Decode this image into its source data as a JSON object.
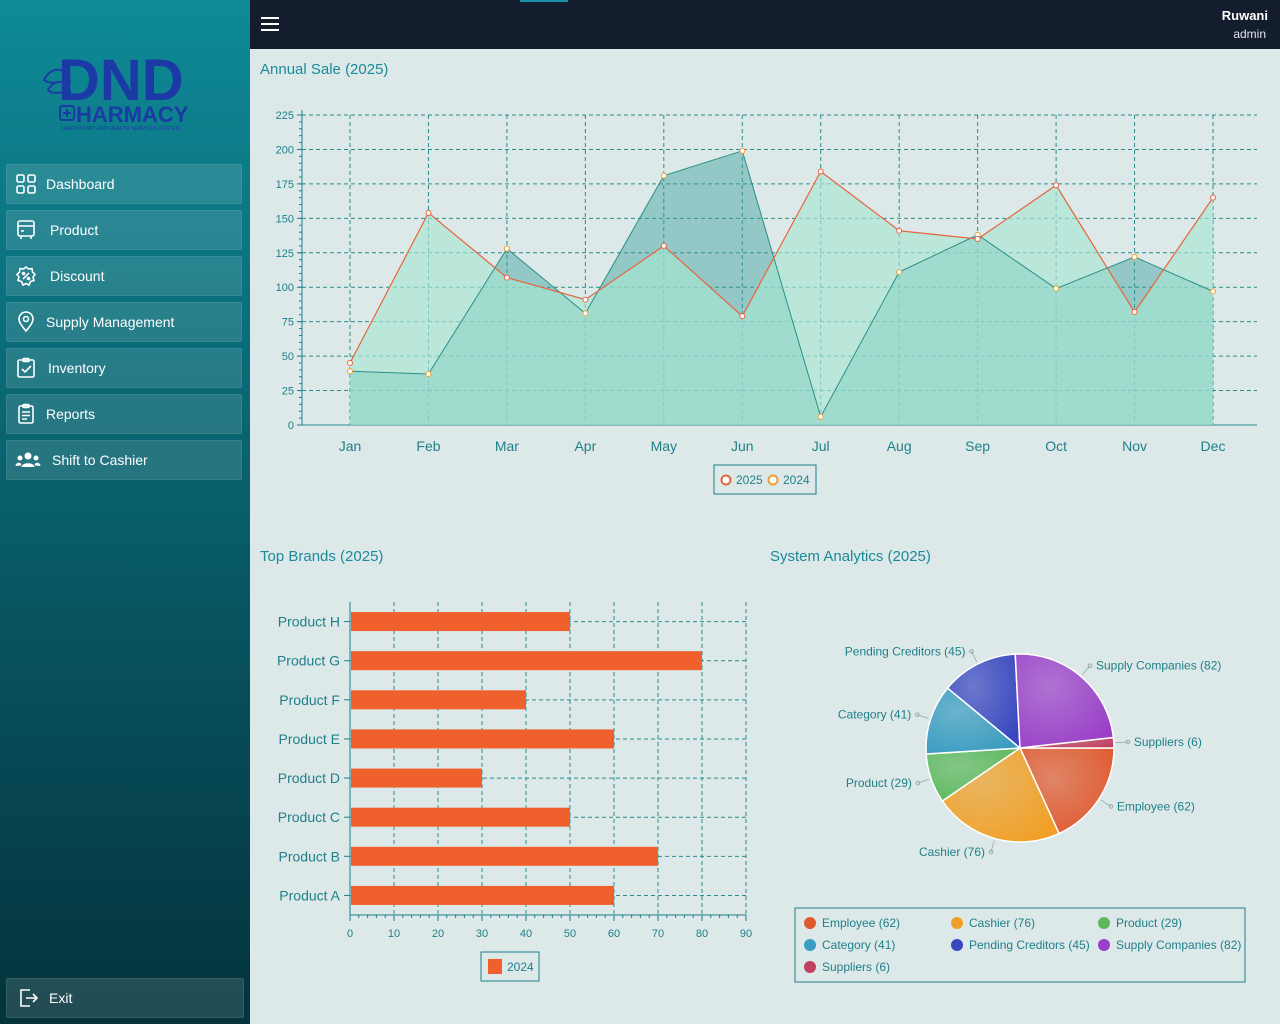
{
  "brand": {
    "logo_main": "DND",
    "logo_sub": "HARMACY",
    "logo_tag": "LABORATORY AND HEALTH SERVICES CENTER",
    "accent_color": "#1b3aa6"
  },
  "sidebar": {
    "items": [
      {
        "label": "Dashboard",
        "icon": "grid-icon"
      },
      {
        "label": "Product",
        "icon": "box-icon"
      },
      {
        "label": "Discount",
        "icon": "discount-badge-icon"
      },
      {
        "label": "Supply Management",
        "icon": "location-pin-icon"
      },
      {
        "label": "Inventory",
        "icon": "clipboard-check-icon"
      },
      {
        "label": "Reports",
        "icon": "report-icon"
      },
      {
        "label": "Shift to Cashier",
        "icon": "users-icon"
      }
    ],
    "exit_label": "Exit"
  },
  "topbar": {
    "user_name": "Ruwani",
    "user_role": "admin"
  },
  "sections": {
    "annual_title": "Annual Sale (2025)",
    "brands_title": "Top Brands (2025)",
    "analytics_title": "System Analytics (2025)"
  },
  "chart_data": [
    {
      "type": "area",
      "title": "Annual Sale (2025)",
      "categories": [
        "Jan",
        "Feb",
        "Mar",
        "Apr",
        "May",
        "Jun",
        "Jul",
        "Aug",
        "Sep",
        "Oct",
        "Nov",
        "Dec"
      ],
      "ylim": [
        0,
        225
      ],
      "yticks": [
        0,
        25,
        50,
        75,
        100,
        125,
        150,
        175,
        200,
        225
      ],
      "grid": true,
      "legend_position": "bottom-center",
      "series": [
        {
          "name": "2025",
          "color": "#e8643c",
          "fill": "#a8e6d2",
          "values": [
            45,
            154,
            107,
            91,
            130,
            79,
            184,
            141,
            135,
            174,
            82,
            165
          ]
        },
        {
          "name": "2024",
          "color": "#f0a030",
          "fill": "#3a9fa0",
          "values": [
            39,
            37,
            128,
            81,
            181,
            199,
            6,
            111,
            138,
            99,
            122,
            97
          ]
        }
      ]
    },
    {
      "type": "bar",
      "orientation": "horizontal",
      "title": "Top Brands (2025)",
      "categories": [
        "Product H",
        "Product G",
        "Product F",
        "Product E",
        "Product D",
        "Product C",
        "Product B",
        "Product A"
      ],
      "xlim": [
        0,
        90
      ],
      "xticks": [
        0,
        10,
        20,
        30,
        40,
        50,
        60,
        70,
        80,
        90
      ],
      "grid": true,
      "legend_position": "bottom-center",
      "series": [
        {
          "name": "2024",
          "color": "#f0602c",
          "values": [
            50,
            80,
            40,
            60,
            30,
            50,
            70,
            60
          ]
        }
      ]
    },
    {
      "type": "pie",
      "title": "System Analytics (2025)",
      "legend_position": "bottom",
      "slices": [
        {
          "label": "Employee (62)",
          "value": 62,
          "color": "#e05a30"
        },
        {
          "label": "Cashier (76)",
          "value": 76,
          "color": "#f0a028"
        },
        {
          "label": "Product (29)",
          "value": 29,
          "color": "#5cb85c"
        },
        {
          "label": "Category (41)",
          "value": 41,
          "color": "#3a9cc0"
        },
        {
          "label": "Pending Creditors (45)",
          "value": 45,
          "color": "#3a48c0"
        },
        {
          "label": "Supply Companies (82)",
          "value": 82,
          "color": "#9a40c8"
        },
        {
          "label": "Suppliers (6)",
          "value": 6,
          "color": "#c04060"
        }
      ]
    }
  ]
}
